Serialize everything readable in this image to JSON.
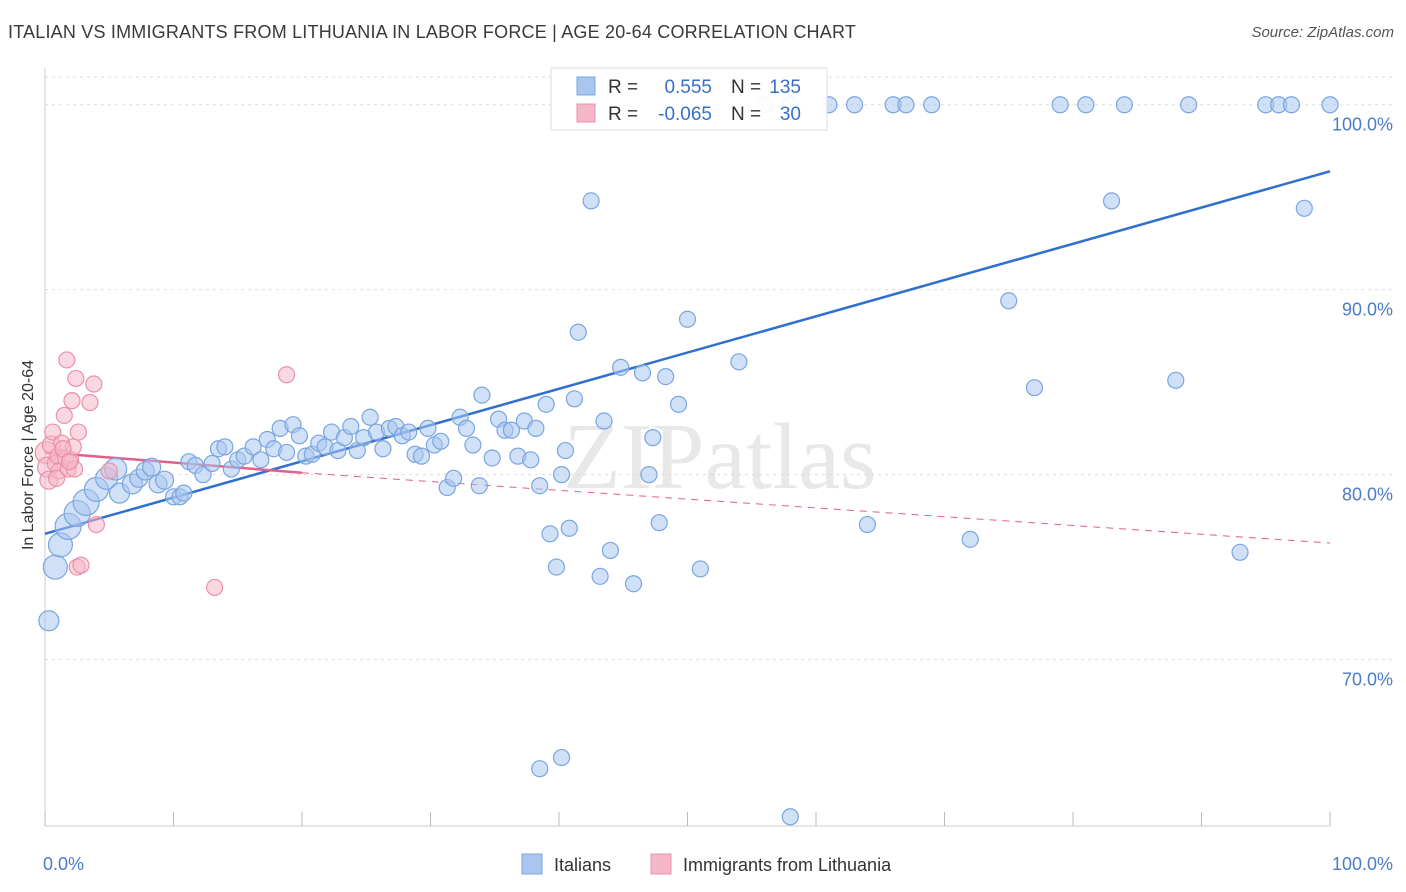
{
  "title": "ITALIAN VS IMMIGRANTS FROM LITHUANIA IN LABOR FORCE | AGE 20-64 CORRELATION CHART",
  "source": "Source: ZipAtlas.com",
  "watermark": "ZIPatlas",
  "chart_data": {
    "type": "scatter",
    "xlabel": "",
    "ylabel": "In Labor Force | Age 20-64",
    "xlim": [
      0,
      100
    ],
    "ylim": [
      61,
      101.5
    ],
    "x_tick_labels": [
      "0.0%",
      "100.0%"
    ],
    "y_ticks": [
      70,
      80,
      90,
      100
    ],
    "y_tick_labels": [
      "70.0%",
      "80.0%",
      "90.0%",
      "100.0%"
    ],
    "grid": true,
    "legend_position": "bottom",
    "stats": [
      {
        "r_label": "R =",
        "r": "0.555",
        "n_label": "N =",
        "n": "135"
      },
      {
        "r_label": "R =",
        "r": "-0.065",
        "n_label": "N =",
        "n": "30"
      }
    ],
    "series": [
      {
        "name": "Italians",
        "color": "#a9c6ef",
        "stroke": "#7aa6e0",
        "trend": {
          "x": [
            0,
            100
          ],
          "y": [
            76.8,
            96.4
          ],
          "color": "#2f6fcf"
        },
        "points": [
          [
            0.3,
            72.1,
            10
          ],
          [
            0.8,
            75.0,
            12
          ],
          [
            1.2,
            76.2,
            12
          ],
          [
            1.8,
            77.2,
            13
          ],
          [
            2.5,
            77.9,
            13
          ],
          [
            3.2,
            78.5,
            13
          ],
          [
            4,
            79.2,
            12
          ],
          [
            4.8,
            79.8,
            11
          ],
          [
            5.5,
            80.3,
            11
          ],
          [
            5.8,
            79.0,
            10
          ],
          [
            6.8,
            79.5,
            10
          ],
          [
            7.3,
            79.8,
            9
          ],
          [
            7.8,
            80.2,
            9
          ],
          [
            8.3,
            80.4,
            9
          ],
          [
            8.8,
            79.5,
            9
          ],
          [
            9.3,
            79.7,
            9
          ],
          [
            10,
            78.8,
            8
          ],
          [
            10.5,
            78.8,
            8
          ],
          [
            10.8,
            79.0,
            8
          ],
          [
            11.2,
            80.7,
            8
          ],
          [
            11.7,
            80.5,
            8
          ],
          [
            12.3,
            80.0,
            8
          ],
          [
            13,
            80.6,
            8
          ],
          [
            13.5,
            81.4,
            8
          ],
          [
            14,
            81.5,
            8
          ],
          [
            14.5,
            80.3,
            8
          ],
          [
            15,
            80.8,
            8
          ],
          [
            15.5,
            81.0,
            8
          ],
          [
            16.2,
            81.5,
            8
          ],
          [
            16.8,
            80.8,
            8
          ],
          [
            17.3,
            81.9,
            8
          ],
          [
            17.8,
            81.4,
            8
          ],
          [
            18.3,
            82.5,
            8
          ],
          [
            18.8,
            81.2,
            8
          ],
          [
            19.3,
            82.7,
            8
          ],
          [
            19.8,
            82.1,
            8
          ],
          [
            20.3,
            81.0,
            8
          ],
          [
            20.8,
            81.1,
            8
          ],
          [
            21.3,
            81.7,
            8
          ],
          [
            21.8,
            81.5,
            8
          ],
          [
            22.3,
            82.3,
            8
          ],
          [
            22.8,
            81.3,
            8
          ],
          [
            23.3,
            82.0,
            8
          ],
          [
            23.8,
            82.6,
            8
          ],
          [
            24.3,
            81.3,
            8
          ],
          [
            24.8,
            82.0,
            8
          ],
          [
            25.3,
            83.1,
            8
          ],
          [
            25.8,
            82.3,
            8
          ],
          [
            26.3,
            81.4,
            8
          ],
          [
            26.8,
            82.5,
            8
          ],
          [
            27.3,
            82.6,
            8
          ],
          [
            27.8,
            82.1,
            8
          ],
          [
            28.3,
            82.3,
            8
          ],
          [
            28.8,
            81.1,
            8
          ],
          [
            29.3,
            81.0,
            8
          ],
          [
            29.8,
            82.5,
            8
          ],
          [
            30.3,
            81.6,
            8
          ],
          [
            30.8,
            81.8,
            8
          ],
          [
            31.3,
            79.3,
            8
          ],
          [
            31.8,
            79.8,
            8
          ],
          [
            32.3,
            83.1,
            8
          ],
          [
            32.8,
            82.5,
            8
          ],
          [
            33.3,
            81.6,
            8
          ],
          [
            33.8,
            79.4,
            8
          ],
          [
            34,
            84.3,
            8
          ],
          [
            34.8,
            80.9,
            8
          ],
          [
            35.3,
            83.0,
            8
          ],
          [
            35.8,
            82.4,
            8
          ],
          [
            36.3,
            82.4,
            8
          ],
          [
            36.8,
            81.0,
            8
          ],
          [
            37.3,
            82.9,
            8
          ],
          [
            37.8,
            80.8,
            8
          ],
          [
            38.2,
            82.5,
            8
          ],
          [
            38.5,
            79.4,
            8
          ],
          [
            39,
            83.8,
            8
          ],
          [
            39.3,
            76.8,
            8
          ],
          [
            39.8,
            75.0,
            8
          ],
          [
            40.2,
            80.0,
            8
          ],
          [
            40.5,
            81.3,
            8
          ],
          [
            40.8,
            77.1,
            8
          ],
          [
            41.2,
            84.1,
            8
          ],
          [
            41.5,
            87.7,
            8
          ],
          [
            42.5,
            94.8,
            8
          ],
          [
            43.2,
            74.5,
            8
          ],
          [
            43.5,
            82.9,
            8
          ],
          [
            44,
            75.9,
            8
          ],
          [
            44.8,
            85.8,
            8
          ],
          [
            45.8,
            74.1,
            8
          ],
          [
            46.5,
            85.5,
            8
          ],
          [
            47,
            80.0,
            8
          ],
          [
            47.3,
            82.0,
            8
          ],
          [
            47.8,
            77.4,
            8
          ],
          [
            48.3,
            85.3,
            8
          ],
          [
            49.3,
            83.8,
            8
          ],
          [
            50,
            88.4,
            8
          ],
          [
            51,
            74.9,
            8
          ],
          [
            54,
            86.1,
            8
          ],
          [
            56,
            100,
            8
          ],
          [
            58,
            100,
            8
          ],
          [
            61,
            100,
            8
          ],
          [
            63,
            100,
            8
          ],
          [
            64,
            77.3,
            8
          ],
          [
            66,
            100,
            8
          ],
          [
            67,
            100,
            8
          ],
          [
            69,
            100,
            8
          ],
          [
            72,
            76.5,
            8
          ],
          [
            75,
            89.4,
            8
          ],
          [
            77,
            84.7,
            8
          ],
          [
            79,
            100,
            8
          ],
          [
            81,
            100,
            8
          ],
          [
            83,
            94.8,
            8
          ],
          [
            84,
            100,
            8
          ],
          [
            88,
            85.1,
            8
          ],
          [
            89,
            100,
            8
          ],
          [
            93,
            75.8,
            8
          ],
          [
            95,
            100,
            8
          ],
          [
            96,
            100,
            8
          ],
          [
            97,
            100,
            8
          ],
          [
            98,
            94.4,
            8
          ],
          [
            100,
            100,
            8
          ],
          [
            38.5,
            64.1,
            8
          ],
          [
            40.2,
            64.7,
            8
          ],
          [
            58,
            61.5,
            8
          ]
        ]
      },
      {
        "name": "Immigrants from Lithuania",
        "color": "#f5b8c8",
        "stroke": "#ec8faa",
        "trend": {
          "x": [
            0,
            20
          ],
          "y": [
            81.2,
            80.1
          ],
          "dash_to_x": 100,
          "dash_to_y": 76.3,
          "color": "#e0608b"
        },
        "points": [
          [
            0.1,
            81.2,
            11
          ],
          [
            0.2,
            80.4,
            10
          ],
          [
            0.3,
            79.7,
            9
          ],
          [
            0.5,
            81.6,
            9
          ],
          [
            0.6,
            82.3,
            8
          ],
          [
            0.8,
            80.6,
            8
          ],
          [
            1.0,
            81.0,
            8
          ],
          [
            1.1,
            80.2,
            8
          ],
          [
            1.3,
            81.7,
            8
          ],
          [
            1.5,
            83.2,
            8
          ],
          [
            1.6,
            80.9,
            8
          ],
          [
            1.7,
            86.2,
            8
          ],
          [
            1.8,
            80.3,
            8
          ],
          [
            2.0,
            80.8,
            8
          ],
          [
            2.1,
            84.0,
            8
          ],
          [
            2.2,
            81.5,
            8
          ],
          [
            2.3,
            80.3,
            8
          ],
          [
            2.4,
            85.2,
            8
          ],
          [
            2.5,
            75.0,
            8
          ],
          [
            2.6,
            82.3,
            8
          ],
          [
            2.8,
            75.1,
            8
          ],
          [
            3.5,
            83.9,
            8
          ],
          [
            3.8,
            84.9,
            8
          ],
          [
            4.0,
            77.3,
            8
          ],
          [
            5.0,
            80.2,
            8
          ],
          [
            13.2,
            73.9,
            8
          ],
          [
            18.8,
            85.4,
            8
          ],
          [
            0.9,
            79.8,
            8
          ],
          [
            1.4,
            81.4,
            8
          ],
          [
            1.9,
            80.7,
            8
          ]
        ]
      }
    ]
  }
}
